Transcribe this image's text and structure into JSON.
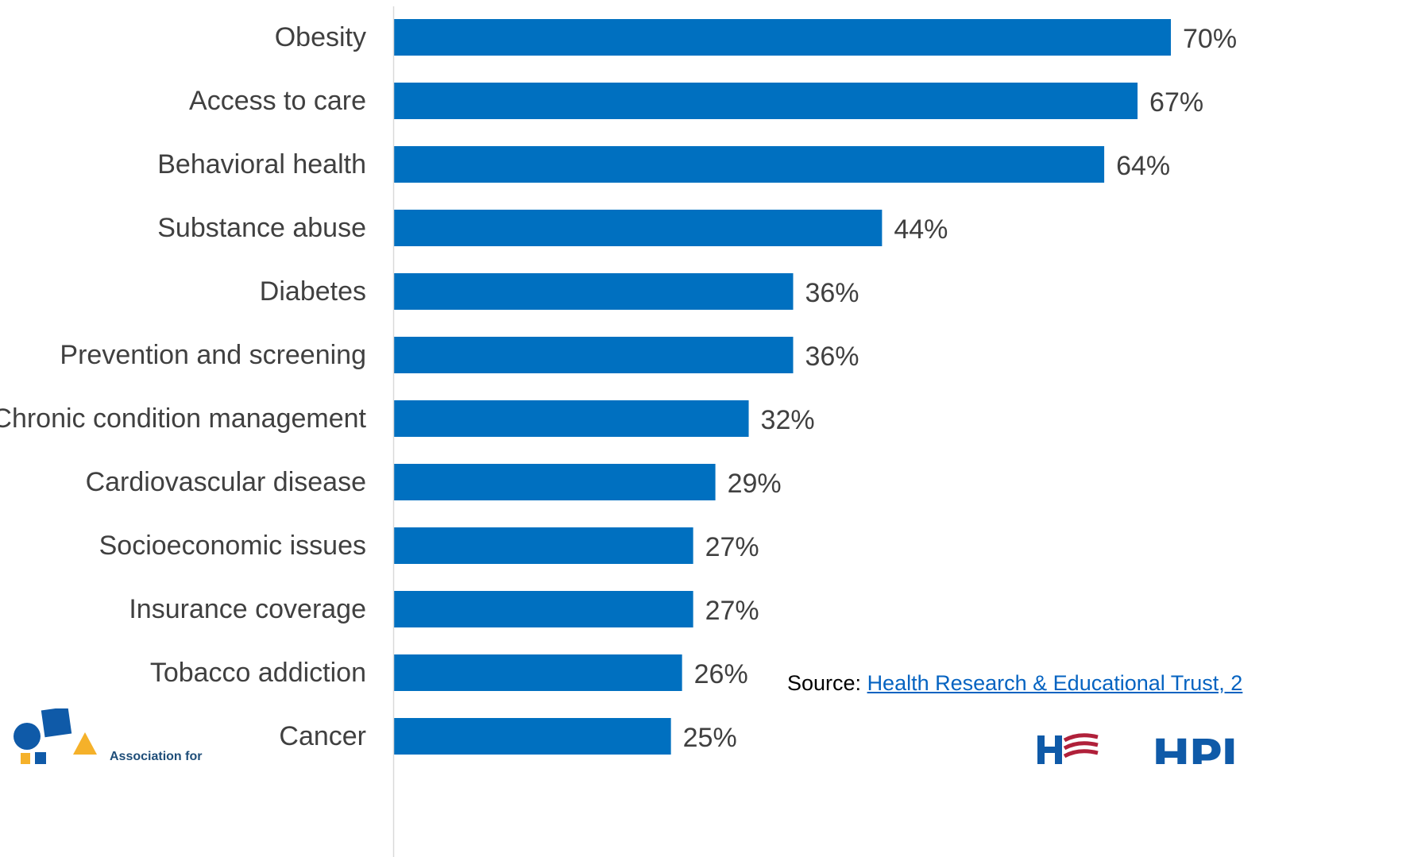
{
  "chart_data": {
    "type": "bar",
    "orientation": "horizontal",
    "categories": [
      "Obesity",
      "Access to care",
      "Behavioral health",
      "Substance abuse",
      "Diabetes",
      "Prevention and screening",
      "Chronic condition management",
      "Cardiovascular disease",
      "Socioeconomic issues",
      "Insurance coverage",
      "Tobacco addiction",
      "Cancer"
    ],
    "values": [
      70,
      67,
      64,
      44,
      36,
      36,
      32,
      29,
      27,
      27,
      26,
      25
    ],
    "value_labels": [
      "70%",
      "67%",
      "64%",
      "44%",
      "36%",
      "36%",
      "32%",
      "29%",
      "27%",
      "27%",
      "26%",
      "25%"
    ],
    "xlim": [
      0,
      70
    ],
    "grid": false,
    "bar_color": "#0070c0",
    "axis_color": "#d9d9d9"
  },
  "source": {
    "prefix": "Source: ",
    "link_text": "Health Research & Educational Trust, 2"
  },
  "logos": {
    "left_text": "Association for",
    "right_text": "HPI"
  }
}
